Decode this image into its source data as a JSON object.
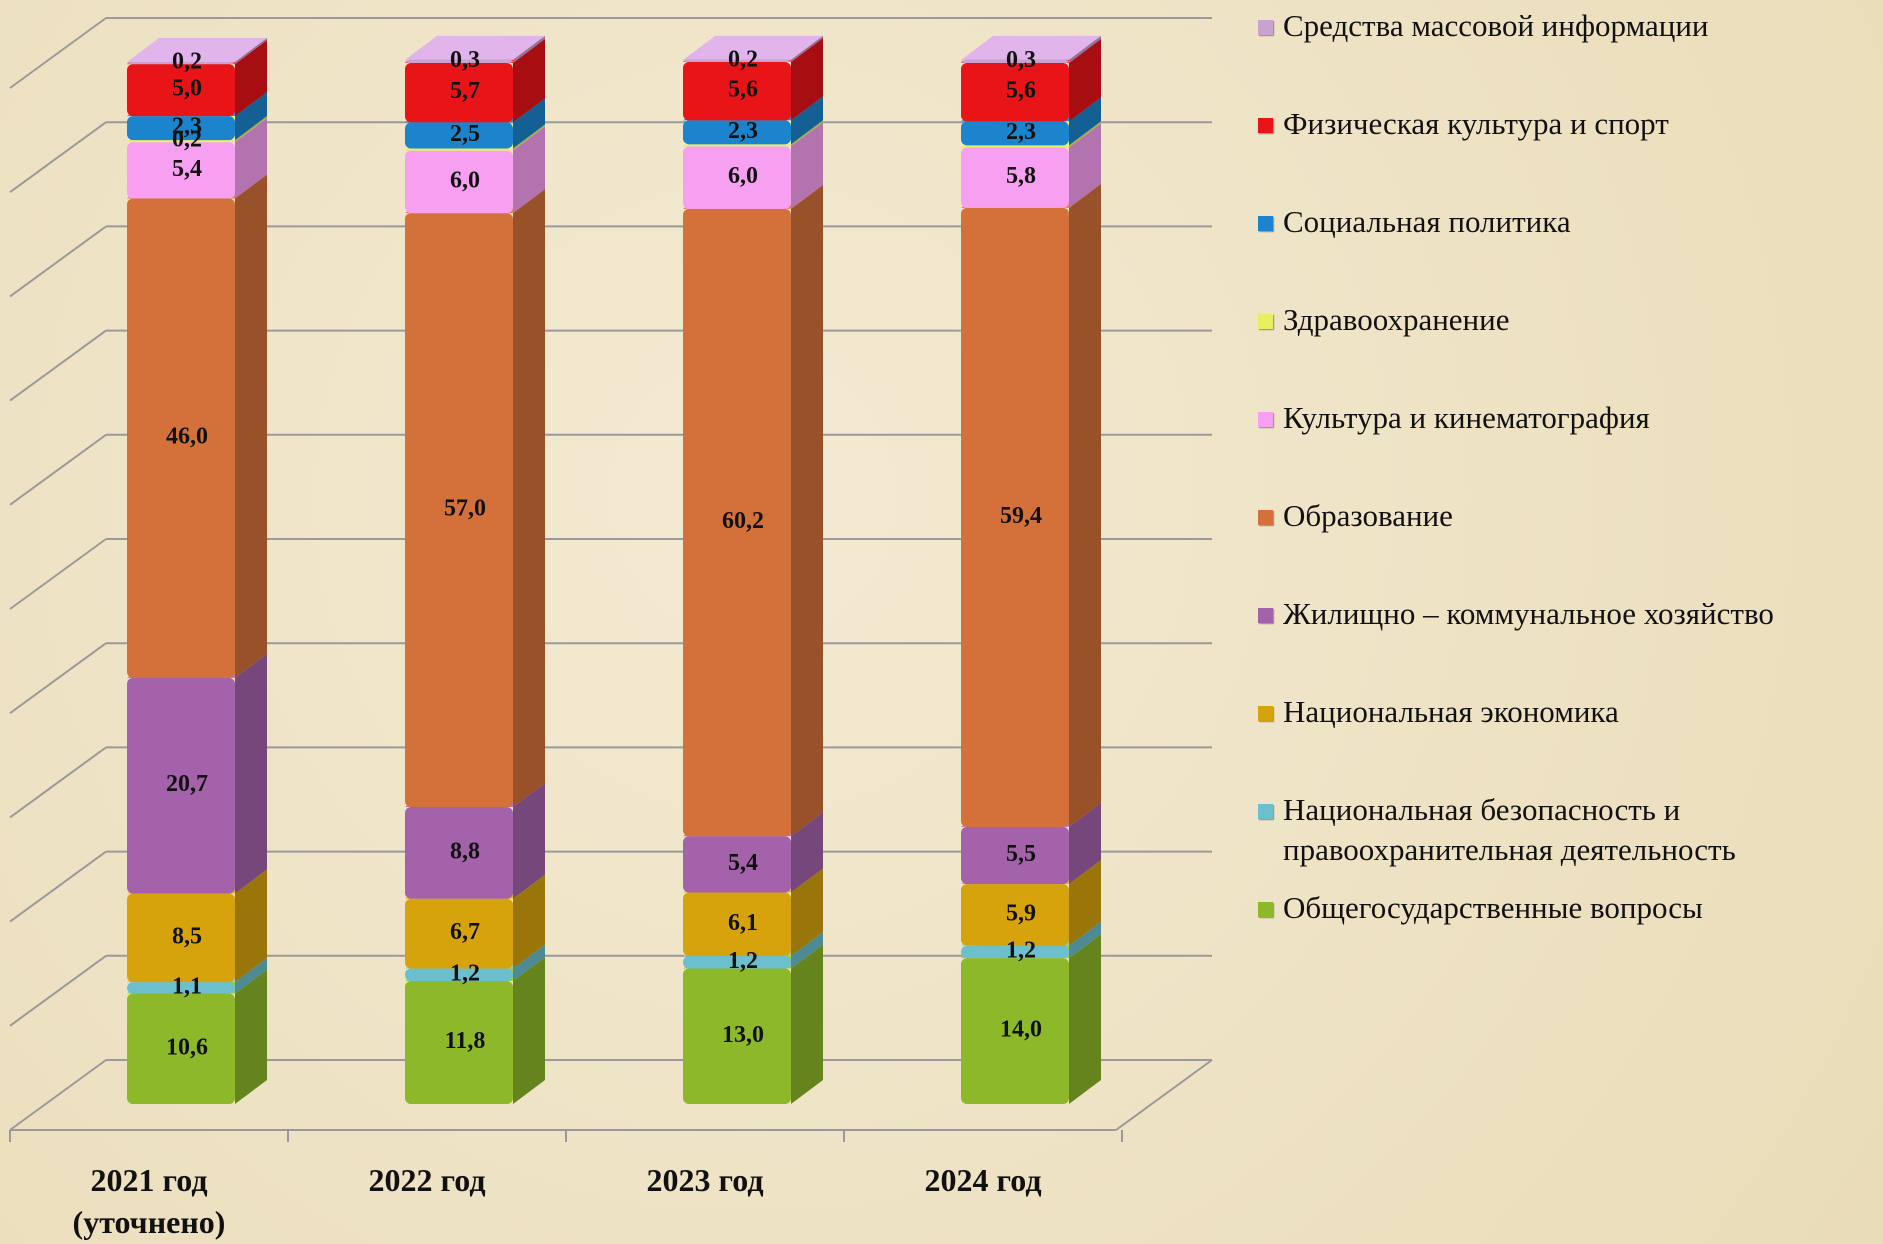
{
  "chart_data": {
    "type": "bar3d_stacked",
    "categories": [
      "2021 год (уточнено)",
      "2022 год",
      "2023 год",
      "2024 год"
    ],
    "ylim": [
      0,
      100
    ],
    "yticks": [
      0,
      10,
      20,
      30,
      40,
      50,
      60,
      70,
      80,
      90,
      100
    ],
    "grid": true,
    "legend": "right",
    "series": [
      {
        "name": "Общегосударственные вопросы",
        "color": "#8cb82a",
        "values": [
          10.6,
          11.8,
          13.0,
          14.0
        ],
        "value_labels": [
          "10,6",
          "11,8",
          "13,0",
          "14,0"
        ]
      },
      {
        "name": "Национальная безопасность и правоохранительная деятельность",
        "color": "#6cbfcc",
        "values": [
          1.1,
          1.2,
          1.2,
          1.2
        ],
        "value_labels": [
          "1,1",
          "1,2",
          "1,2",
          "1,2"
        ]
      },
      {
        "name": "Национальная экономика",
        "color": "#d6a30c",
        "values": [
          8.5,
          6.7,
          6.1,
          5.9
        ],
        "value_labels": [
          "8,5",
          "6,7",
          "6,1",
          "5,9"
        ]
      },
      {
        "name": "Жилищно – коммунальное хозяйство",
        "color": "#a462ab",
        "values": [
          20.7,
          8.8,
          5.4,
          5.5
        ],
        "value_labels": [
          "20,7",
          "8,8",
          "5,4",
          "5,5"
        ]
      },
      {
        "name": "Образование",
        "color": "#d4703a",
        "values": [
          46.0,
          57.0,
          60.2,
          59.4
        ],
        "value_labels": [
          "46,0",
          "57,0",
          "60,2",
          "59,4"
        ]
      },
      {
        "name": "Культура и кинематография",
        "color": "#f7a0f2",
        "values": [
          5.4,
          6.0,
          6.0,
          5.8
        ],
        "value_labels": [
          "5,4",
          "6,0",
          "6,0",
          "5,8"
        ]
      },
      {
        "name": "Здравоохранение",
        "color": "#e8f060",
        "values": [
          0.2,
          0.2,
          0.2,
          0.2
        ],
        "value_labels": [
          "0,2",
          null,
          null,
          null
        ]
      },
      {
        "name": "Социальная политика",
        "color": "#1c84cc",
        "values": [
          2.3,
          2.5,
          2.3,
          2.3
        ],
        "value_labels": [
          "2,3",
          "2,5",
          "2,3",
          "2,3"
        ]
      },
      {
        "name": "Физическая культура и  спорт",
        "color": "#e81418",
        "values": [
          5.0,
          5.7,
          5.6,
          5.6
        ],
        "value_labels": [
          "5,0",
          "5,7",
          "5,6",
          "5,6"
        ]
      },
      {
        "name": "Средства массовой информации",
        "color": "#c9a2d2",
        "values": [
          0.2,
          0.3,
          0.2,
          0.3
        ],
        "value_labels": [
          "0,2",
          "0,3",
          "0,2",
          "0,3"
        ]
      }
    ]
  }
}
